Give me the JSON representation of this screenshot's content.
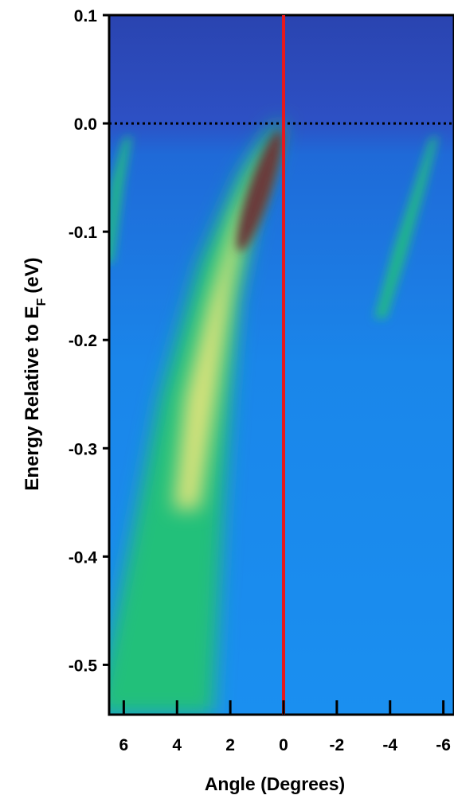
{
  "chart_data": {
    "type": "heatmap",
    "ylabel": [
      "Energy Relative to E",
      "F",
      "(eV)"
    ],
    "xlabel": "Angle (Degrees)",
    "xlim": [
      6.55,
      -6.4
    ],
    "xticks": [
      6,
      4,
      2,
      0,
      -2,
      -4,
      -6
    ],
    "ylim": [
      -0.546,
      0.1
    ],
    "yticks": [
      0.1,
      {
        "value": 0,
        "label": "0.0"
      },
      -0.1,
      -0.2,
      -0.3,
      -0.4,
      -0.5
    ],
    "vline": {
      "value": 0,
      "color": "#e8191c"
    },
    "hline": {
      "value": 0,
      "color": "#000000",
      "style": "dotted"
    }
  }
}
